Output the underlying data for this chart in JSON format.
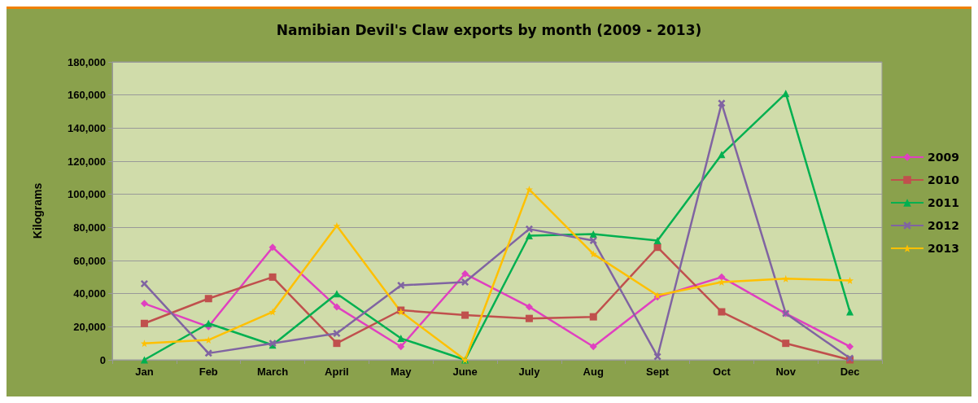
{
  "chart_data": {
    "type": "line",
    "title": "Namibian Devil's Claw exports by month (2009 - 2013)",
    "ylabel": "Kilograms",
    "categories": [
      "Jan",
      "Feb",
      "March",
      "April",
      "May",
      "June",
      "July",
      "Aug",
      "Sept",
      "Oct",
      "Nov",
      "Dec"
    ],
    "series": [
      {
        "name": "2009",
        "color": "#e040c0",
        "marker": "diamond",
        "values": [
          34000,
          20000,
          68000,
          32000,
          8000,
          52000,
          32000,
          8000,
          38000,
          50000,
          28000,
          8000
        ]
      },
      {
        "name": "2010",
        "color": "#c0504d",
        "marker": "square",
        "values": [
          22000,
          37000,
          50000,
          10000,
          30000,
          27000,
          25000,
          26000,
          68000,
          29000,
          10000,
          0
        ]
      },
      {
        "name": "2011",
        "color": "#00b050",
        "marker": "triangle",
        "values": [
          0,
          22000,
          9000,
          40000,
          13000,
          0,
          75000,
          76000,
          72000,
          124000,
          161000,
          29000
        ]
      },
      {
        "name": "2012",
        "color": "#8064a2",
        "marker": "cross",
        "values": [
          46000,
          4000,
          10000,
          16000,
          45000,
          47000,
          79000,
          72000,
          2000,
          155000,
          28000,
          1000
        ]
      },
      {
        "name": "2013",
        "color": "#ffc000",
        "marker": "star",
        "values": [
          10000,
          12000,
          29000,
          81000,
          29000,
          0,
          103000,
          64000,
          39000,
          47000,
          49000,
          48000
        ]
      }
    ],
    "ylim": [
      0,
      180000
    ],
    "yticks": [
      0,
      {
        "value": 20000,
        "label": "20,000"
      },
      {
        "value": 40000,
        "label": "40,000"
      },
      {
        "value": 60000,
        "label": "60,000"
      },
      {
        "value": 80000,
        "label": "80,000"
      },
      {
        "value": 100000,
        "label": "100,000"
      },
      {
        "value": 120000,
        "label": "120,000"
      },
      {
        "value": 140000,
        "label": "140,000"
      },
      {
        "value": 160000,
        "label": "160,000"
      },
      {
        "value": 180000,
        "label": "180,000"
      }
    ],
    "grid": "y",
    "legend": "right"
  }
}
